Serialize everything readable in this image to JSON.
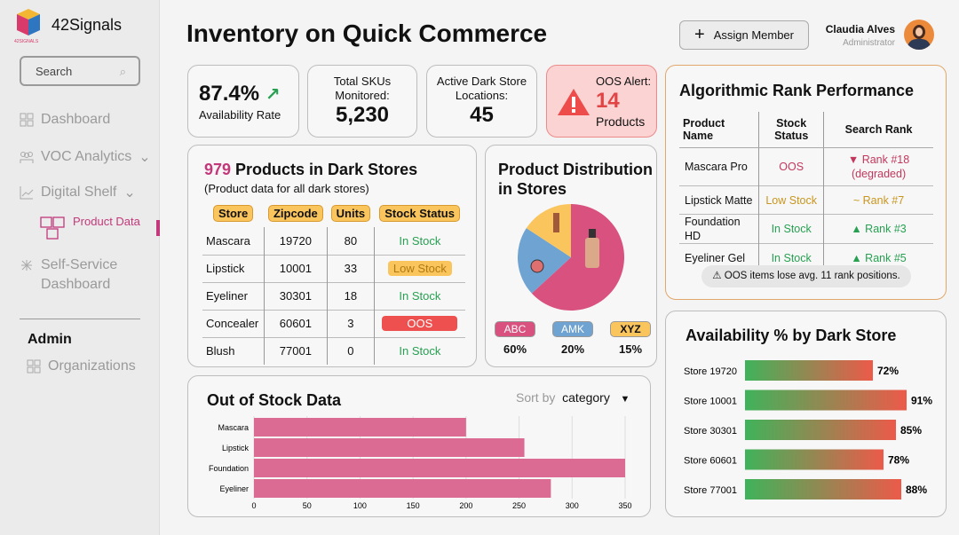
{
  "app": {
    "name": "42Signals",
    "logo_text": "42SIGNALS"
  },
  "sidebar": {
    "search_placeholder": "Search",
    "items": [
      {
        "label": "Dashboard",
        "icon": "grid-icon"
      },
      {
        "label": "VOC Analytics",
        "icon": "users-icon"
      },
      {
        "label": "Digital Shelf",
        "icon": "chart-line-icon"
      },
      {
        "label": "Product Data",
        "icon": "boxes-icon",
        "active": true
      },
      {
        "label": "Self-Service Dashboard",
        "icon": "network-icon"
      }
    ],
    "admin_heading": "Admin",
    "admin_items": [
      {
        "label": "Organizations",
        "icon": "grid-icon"
      }
    ]
  },
  "header": {
    "title": "Inventory on Quick Commerce",
    "assign_label": "Assign Member",
    "user_name": "Claudia Alves",
    "user_role": "Administrator"
  },
  "kpis": {
    "availability": {
      "value": "87.4%",
      "label": "Availability Rate"
    },
    "skus": {
      "label": "Total SKUs Monitored:",
      "value": "5,230"
    },
    "stores": {
      "label": "Active Dark Store Locations:",
      "value": "45"
    },
    "oos": {
      "label": "OOS Alert:",
      "value": "14",
      "unit": "Products"
    }
  },
  "products": {
    "count": "979",
    "title": " Products in Dark Stores",
    "subtitle": "(Product data for all dark stores)",
    "columns": [
      "Store",
      "Zipcode",
      "Units",
      "Stock Status"
    ],
    "rows": [
      [
        "Mascara",
        "19720",
        "80",
        "In Stock"
      ],
      [
        "Lipstick",
        "10001",
        "33",
        "Low Stock"
      ],
      [
        "Eyeliner",
        "30301",
        "18",
        "In Stock"
      ],
      [
        "Concealer",
        "60601",
        "3",
        "OOS"
      ],
      [
        "Blush",
        "77001",
        "0",
        "In Stock"
      ]
    ]
  },
  "distribution": {
    "title": "Product Distribution in Stores",
    "slices": [
      {
        "label": "ABC",
        "value": 60,
        "pct": "60%",
        "color": "#d9517f"
      },
      {
        "label": "AMK",
        "value": 20,
        "pct": "20%",
        "color": "#6fa3d2"
      },
      {
        "label": "XYZ",
        "value": 15,
        "pct": "15%",
        "color": "#fbc55e"
      }
    ]
  },
  "rank": {
    "title": "Algorithmic Rank Performance",
    "columns": [
      "Product Name",
      "Stock Status",
      "Search Rank"
    ],
    "rows": [
      [
        "Mascara Pro",
        "OOS",
        "▼ Rank #18 (degraded)"
      ],
      [
        "Lipstick Matte",
        "Low Stock",
        "~ Rank #7"
      ],
      [
        "Foundation HD",
        "In Stock",
        "▲ Rank #3"
      ],
      [
        "Eyeliner Gel",
        "In Stock",
        "▲ Rank #5"
      ]
    ],
    "note": "OOS items lose avg. 11 rank positions."
  },
  "chart_data": [
    {
      "type": "bar",
      "orientation": "horizontal",
      "title": "Out of Stock Data",
      "categories": [
        "Mascara",
        "Lipstick",
        "Foundation",
        "Eyeliner"
      ],
      "values": [
        200,
        255,
        350,
        280
      ],
      "xlim": [
        0,
        350
      ],
      "xticks": [
        0,
        50,
        100,
        150,
        200,
        250,
        300,
        350
      ],
      "color": "#dc6b94",
      "grid": true,
      "sort_label": "Sort by",
      "sort_value": "category"
    },
    {
      "type": "bar",
      "orientation": "horizontal",
      "title": "Availability % by Dark Store",
      "categories": [
        "Store 19720",
        "Store 10001",
        "Store 30301",
        "Store 60601",
        "Store 77001"
      ],
      "values": [
        72,
        91,
        85,
        78,
        88
      ],
      "xlim": [
        0,
        100
      ]
    }
  ]
}
